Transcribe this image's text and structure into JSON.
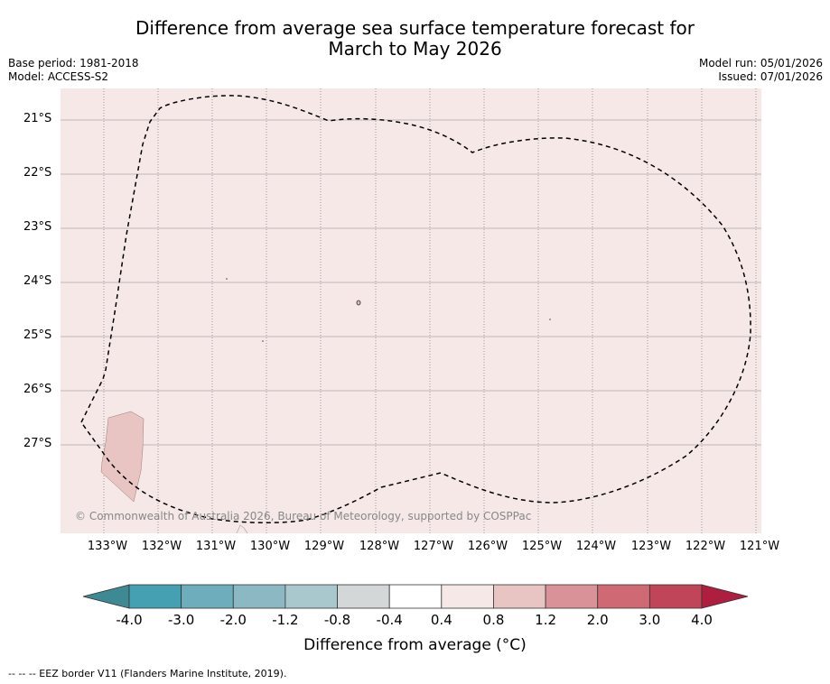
{
  "title": {
    "line1": "Difference from average sea surface temperature forecast for",
    "line2": "March to May 2026"
  },
  "info_left": {
    "base_period": "Base period: 1981-2018",
    "model": "Model: ACCESS-S2"
  },
  "info_right": {
    "model_run": "Model run: 05/01/2026",
    "issued": "Issued: 07/01/2026"
  },
  "map": {
    "background_color": "#f5e8e7",
    "anomaly_patch_color": "#e8c5c2",
    "latitude_labels": [
      "21°S",
      "22°S",
      "23°S",
      "24°S",
      "25°S",
      "26°S",
      "27°S"
    ],
    "longitude_labels": [
      "133°W",
      "132°W",
      "131°W",
      "130°W",
      "129°W",
      "128°W",
      "127°W",
      "126°W",
      "125°W",
      "124°W",
      "123°W",
      "122°W",
      "121°W"
    ],
    "copyright": "© Commonwealth of Australia 2026, Bureau of Meteorology, supported by COSPPac"
  },
  "colorbar": {
    "title": "Difference from average (°C)",
    "tick_labels": [
      "-4.0",
      "-3.0",
      "-2.0",
      "-1.2",
      "-0.8",
      "-0.4",
      "0.4",
      "0.8",
      "1.2",
      "2.0",
      "3.0",
      "4.0"
    ],
    "colors": [
      "#3d8a94",
      "#45a0b1",
      "#6eadbb",
      "#8cb8c4",
      "#a9c8cd",
      "#d3d7d8",
      "#ffffff",
      "#f5e8e7",
      "#e8c5c2",
      "#d99298",
      "#cf6a75",
      "#c04558",
      "#ae1f3f"
    ]
  },
  "footnote": "--  --  -- EEZ border V11 (Flanders Marine Institute, 2019)."
}
